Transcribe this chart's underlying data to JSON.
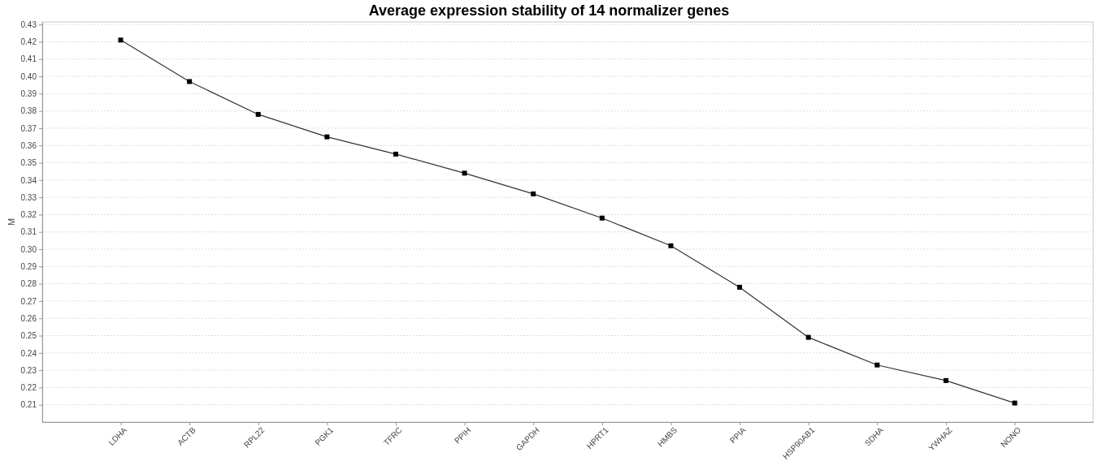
{
  "chart_data": {
    "type": "line",
    "title": "Average expression stability of 14 normalizer genes",
    "ylabel": "M",
    "categories": [
      "LDHA",
      "ACTB",
      "RPL22",
      "PGK1",
      "TFRC",
      "PPIH",
      "GAPDH",
      "HPRT1",
      "HMBS",
      "PPIA",
      "HSP90AB1",
      "SDHA",
      "YWHAZ",
      "NONO"
    ],
    "series": [
      {
        "color": "#333333",
        "values": [
          0.421,
          0.397,
          0.378,
          0.365,
          0.355,
          0.344,
          0.332,
          0.318,
          0.302,
          0.278,
          0.249,
          0.233,
          0.224,
          0.211
        ]
      }
    ],
    "ylim": [
      0.2,
      0.4315
    ],
    "yticks": [
      {
        "value": 0.21,
        "label": "0.21"
      },
      {
        "value": 0.22,
        "label": "0.22"
      },
      {
        "value": 0.23,
        "label": "0.23"
      },
      {
        "value": 0.24,
        "label": "0.24"
      },
      {
        "value": 0.25,
        "label": "0.25"
      },
      {
        "value": 0.26,
        "label": "0.26"
      },
      {
        "value": 0.27,
        "label": "0.27"
      },
      {
        "value": 0.28,
        "label": "0.28"
      },
      {
        "value": 0.29,
        "label": "0.29"
      },
      {
        "value": 0.3,
        "label": "0.30"
      },
      {
        "value": 0.31,
        "label": "0.31"
      },
      {
        "value": 0.32,
        "label": "0.32"
      },
      {
        "value": 0.33,
        "label": "0.33"
      },
      {
        "value": 0.34,
        "label": "0.34"
      },
      {
        "value": 0.35,
        "label": "0.35"
      },
      {
        "value": 0.36,
        "label": "0.36"
      },
      {
        "value": 0.37,
        "label": "0.37"
      },
      {
        "value": 0.38,
        "label": "0.38"
      },
      {
        "value": 0.39,
        "label": "0.39"
      },
      {
        "value": 0.4,
        "label": "0.40"
      },
      {
        "value": 0.41,
        "label": "0.41"
      },
      {
        "value": 0.42,
        "label": "0.42"
      },
      {
        "value": 0.43,
        "label": "0.43"
      }
    ],
    "grid": "y",
    "marker": "square",
    "line_style": "solid"
  }
}
